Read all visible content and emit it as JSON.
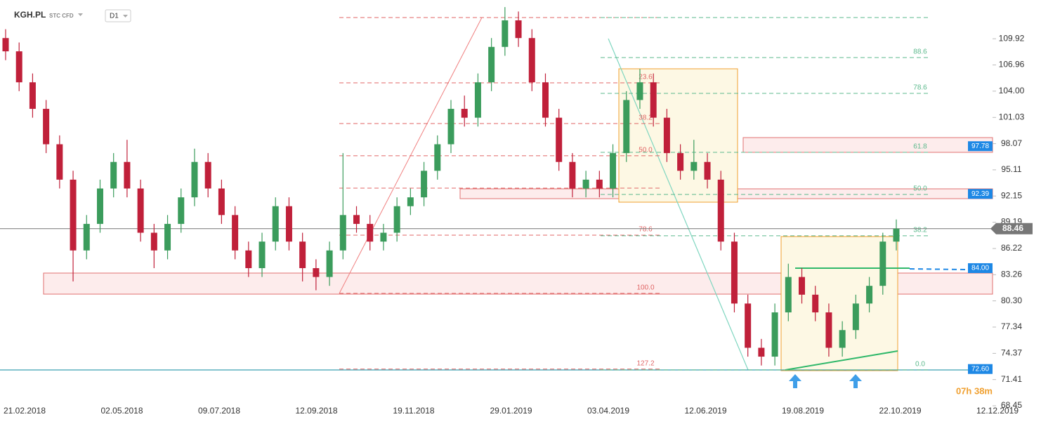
{
  "header": {
    "symbol": "KGH.PL",
    "market": "STC CFD",
    "interval": "D1"
  },
  "chart_data": {
    "type": "candlestick",
    "categories": [
      "21.02.2018",
      "02.05.2018",
      "09.07.2018",
      "12.09.2018",
      "19.11.2018",
      "29.01.2019",
      "03.04.2019",
      "12.06.2019",
      "19.08.2019",
      "22.10.2019",
      "12.12.2019"
    ],
    "up_color": "#3b9c5c",
    "down_color": "#c0203a",
    "series": [
      {
        "values": [
          [
            110,
            111,
            107.5,
            108.5
          ],
          [
            108.5,
            109.5,
            104,
            105
          ],
          [
            105,
            106,
            101,
            102
          ],
          [
            102,
            103,
            97,
            98
          ],
          [
            98,
            99,
            93,
            94
          ],
          [
            94,
            95,
            82.5,
            86
          ],
          [
            86,
            90,
            85,
            89
          ],
          [
            89,
            94,
            88,
            93
          ],
          [
            93,
            97,
            92,
            96
          ],
          [
            96,
            98.5,
            92,
            93
          ],
          [
            93,
            94,
            87,
            88
          ],
          [
            88,
            89,
            84,
            86
          ],
          [
            86,
            90,
            85,
            89
          ],
          [
            89,
            93,
            88,
            92
          ],
          [
            92,
            97.5,
            91,
            96
          ],
          [
            96,
            97,
            92,
            93
          ],
          [
            93,
            94,
            89,
            90
          ],
          [
            90,
            91,
            85,
            86
          ],
          [
            86,
            87,
            83,
            84
          ],
          [
            84,
            88,
            83,
            87
          ],
          [
            87,
            92,
            86,
            91
          ],
          [
            91,
            92,
            86,
            87
          ],
          [
            87,
            88,
            82.5,
            84
          ],
          [
            84,
            85,
            81.5,
            83
          ],
          [
            83,
            87,
            82,
            86
          ],
          [
            86,
            97,
            85,
            90
          ],
          [
            90,
            91,
            88,
            89
          ],
          [
            89,
            90,
            86,
            87
          ],
          [
            87,
            89,
            86,
            88
          ],
          [
            88,
            92,
            87,
            91
          ],
          [
            91,
            93,
            90,
            92
          ],
          [
            92,
            96,
            91,
            95
          ],
          [
            95,
            99,
            94,
            98
          ],
          [
            98,
            103,
            97,
            102
          ],
          [
            102,
            103.5,
            100,
            101
          ],
          [
            101,
            106,
            100,
            105
          ],
          [
            105,
            110,
            104,
            109
          ],
          [
            109,
            113.5,
            108,
            112
          ],
          [
            112,
            113,
            109,
            110
          ],
          [
            110,
            111,
            104,
            105
          ],
          [
            105,
            106,
            100,
            101
          ],
          [
            101,
            102,
            95,
            96
          ],
          [
            96,
            97,
            92,
            93
          ],
          [
            93,
            95,
            92,
            94
          ],
          [
            94,
            95,
            92,
            93
          ],
          [
            93,
            98,
            92,
            97
          ],
          [
            97,
            104,
            96,
            103
          ],
          [
            103,
            106.5,
            102,
            105
          ],
          [
            105,
            106,
            100,
            101
          ],
          [
            101,
            102,
            96,
            97
          ],
          [
            97,
            98,
            94,
            95
          ],
          [
            95,
            98.5,
            94,
            96
          ],
          [
            96,
            97,
            93,
            94
          ],
          [
            94,
            95,
            86,
            87
          ],
          [
            87,
            88,
            79,
            80
          ],
          [
            80,
            81,
            74,
            75
          ],
          [
            75,
            76,
            73,
            74
          ],
          [
            74,
            80,
            73,
            79
          ],
          [
            79,
            84.5,
            78,
            83
          ],
          [
            83,
            84,
            80,
            81
          ],
          [
            81,
            82,
            78,
            79
          ],
          [
            79,
            80,
            74,
            75
          ],
          [
            75,
            78,
            74,
            77
          ],
          [
            77,
            81,
            76,
            80
          ],
          [
            80,
            83,
            79,
            82
          ],
          [
            82,
            88,
            81,
            87
          ],
          [
            87,
            89.5,
            86,
            88.46
          ]
        ]
      }
    ],
    "ylim": [
      68.45,
      114.3
    ],
    "yticks": [
      109.92,
      106.96,
      {
        "value": 104,
        "label": "104.00"
      },
      101.03,
      98.07,
      95.11,
      92.15,
      89.19,
      86.22,
      83.26,
      {
        "value": 80.3,
        "label": "80.30"
      },
      77.34,
      74.37,
      71.41,
      68.45
    ],
    "price_tags": [
      97.78,
      92.39,
      {
        "value": 84,
        "label": "84.00"
      },
      {
        "value": 72.6,
        "label": "72.60"
      }
    ],
    "current_price": 88.46,
    "fib_red": {
      "color": "#e06666",
      "levels": [
        {
          "label": "23.6",
          "value": 104.94
        },
        {
          "label": "38.2",
          "value": 100.34
        },
        {
          "label": "50.0",
          "value": 96.7
        },
        {
          "label": "78.6",
          "value": 87.73
        },
        {
          "label": "100.0",
          "value": 81.15
        },
        {
          "label": "127.2",
          "value": 72.59
        }
      ]
    },
    "fib_green": {
      "color": "#5bb98c",
      "levels": [
        {
          "label": "88.6",
          "value": 107.8
        },
        {
          "label": "78.6",
          "value": 103.75
        },
        {
          "label": "61.8",
          "value": 97.09
        },
        {
          "label": "50.0",
          "value": 92.33
        },
        {
          "label": "38.2",
          "value": 87.66
        },
        {
          "label": "0.0",
          "value": 72.51
        }
      ]
    },
    "timer": "07h 38m"
  }
}
